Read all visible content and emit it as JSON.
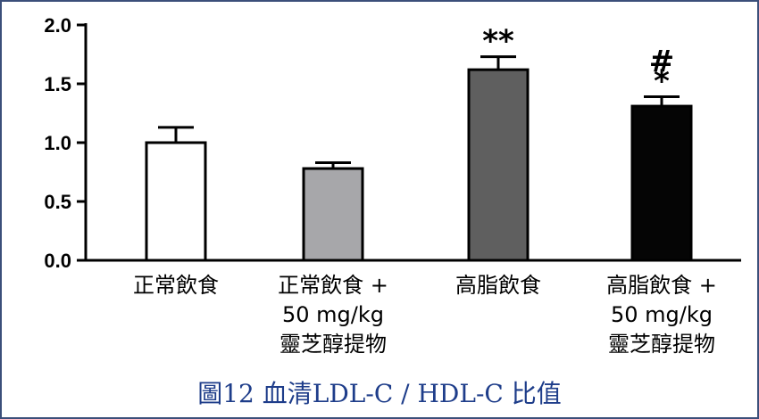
{
  "caption": "圖12  血清LDL-C / HDL-C 比值",
  "chart_data": {
    "type": "bar",
    "categories": [
      "正常飲食",
      "正常飲食 +\n50 mg/kg\n靈芝醇提物",
      "高脂飲食",
      "高脂飲食 +\n50 mg/kg\n靈芝醇提物"
    ],
    "values": [
      1.0,
      0.78,
      1.62,
      1.31
    ],
    "errors": [
      0.13,
      0.05,
      0.11,
      0.08
    ],
    "significance": [
      "",
      "",
      "**",
      "#\n*"
    ],
    "bar_colors": [
      "#ffffff",
      "#a7a7aa",
      "#5f5f5f",
      "#050505"
    ],
    "ylim": [
      0,
      2.0
    ],
    "yticks": [
      "0.0",
      "0.5",
      "1.0",
      "1.5",
      "2.0"
    ],
    "xlabel": "",
    "ylabel": "",
    "grid": false
  }
}
